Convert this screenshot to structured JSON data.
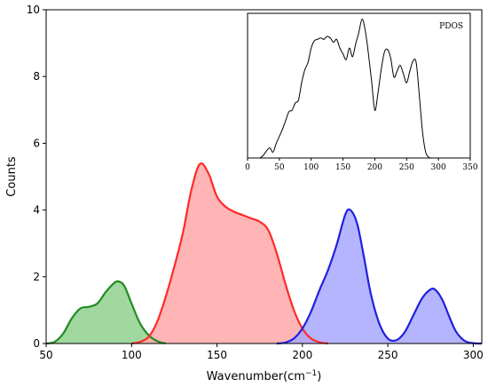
{
  "chart_data": [
    {
      "type": "area",
      "xlabel_text": "Wavenumber(cm",
      "xlabel_exp": "−1",
      "xlabel_close": ")",
      "ylabel": "Counts",
      "xlim": [
        50,
        305
      ],
      "ylim": [
        0,
        10
      ],
      "xticks": [
        50,
        100,
        150,
        200,
        250,
        300
      ],
      "yticks": [
        0,
        2,
        4,
        6,
        8,
        10
      ],
      "grid": false,
      "series": [
        {
          "color": "#228B22",
          "fill": "#8fd18f",
          "x": [
            50,
            55,
            60,
            65,
            70,
            75,
            80,
            85,
            90,
            93,
            96,
            100,
            105,
            110,
            115,
            120
          ],
          "y": [
            0,
            0.05,
            0.3,
            0.75,
            1.05,
            1.1,
            1.2,
            1.55,
            1.82,
            1.85,
            1.7,
            1.2,
            0.6,
            0.25,
            0.07,
            0
          ]
        },
        {
          "color": "#ff2a2a",
          "fill": "#ffa8a8",
          "x": [
            100,
            105,
            110,
            115,
            120,
            125,
            130,
            135,
            140,
            145,
            150,
            155,
            160,
            165,
            170,
            175,
            180,
            185,
            190,
            195,
            200,
            205,
            210,
            215
          ],
          "y": [
            0,
            0.05,
            0.2,
            0.65,
            1.4,
            2.3,
            3.3,
            4.6,
            5.38,
            5.1,
            4.4,
            4.1,
            3.95,
            3.85,
            3.75,
            3.65,
            3.4,
            2.7,
            1.8,
            1.0,
            0.45,
            0.15,
            0.04,
            0
          ]
        },
        {
          "color": "#2020e0",
          "fill": "#a8a8ff",
          "x": [
            185,
            190,
            195,
            200,
            205,
            210,
            215,
            220,
            225,
            228,
            232,
            236,
            240,
            245,
            250,
            255,
            260,
            265,
            270,
            275,
            278,
            282,
            286,
            290,
            295,
            300,
            305
          ],
          "y": [
            0,
            0.03,
            0.15,
            0.45,
            0.95,
            1.6,
            2.2,
            2.95,
            3.85,
            4.0,
            3.6,
            2.6,
            1.5,
            0.6,
            0.15,
            0.1,
            0.35,
            0.85,
            1.35,
            1.62,
            1.6,
            1.3,
            0.8,
            0.35,
            0.08,
            0.01,
            0
          ]
        }
      ]
    },
    {
      "type": "line",
      "legend": "PDOS",
      "legend_position": "top-right",
      "xlim": [
        0,
        350
      ],
      "xticks": [
        0,
        50,
        100,
        150,
        200,
        250,
        300,
        350
      ],
      "yticks": [],
      "ylim": [
        0,
        10
      ],
      "series": [
        {
          "color": "#000000",
          "x": [
            20,
            25,
            30,
            35,
            40,
            45,
            50,
            55,
            60,
            65,
            70,
            75,
            80,
            85,
            90,
            95,
            100,
            105,
            110,
            115,
            120,
            125,
            130,
            135,
            140,
            145,
            150,
            155,
            160,
            165,
            170,
            175,
            180,
            185,
            190,
            195,
            200,
            205,
            210,
            215,
            220,
            225,
            230,
            235,
            240,
            245,
            250,
            255,
            260,
            265,
            270,
            275,
            280,
            285,
            290
          ],
          "y": [
            0,
            0.2,
            0.5,
            0.7,
            0.4,
            1.0,
            1.5,
            2.0,
            2.6,
            3.2,
            3.3,
            3.8,
            4.0,
            5.2,
            6.1,
            6.6,
            7.6,
            8.1,
            8.2,
            8.3,
            8.2,
            8.4,
            8.3,
            8.0,
            8.2,
            7.6,
            7.2,
            6.8,
            7.6,
            7.0,
            7.9,
            8.7,
            9.6,
            8.8,
            7.2,
            5.3,
            3.3,
            4.5,
            6.1,
            7.3,
            7.5,
            6.9,
            5.6,
            6.0,
            6.4,
            5.8,
            5.2,
            6.0,
            6.7,
            6.6,
            4.3,
            1.8,
            0.4,
            0.05,
            0
          ]
        }
      ]
    }
  ]
}
